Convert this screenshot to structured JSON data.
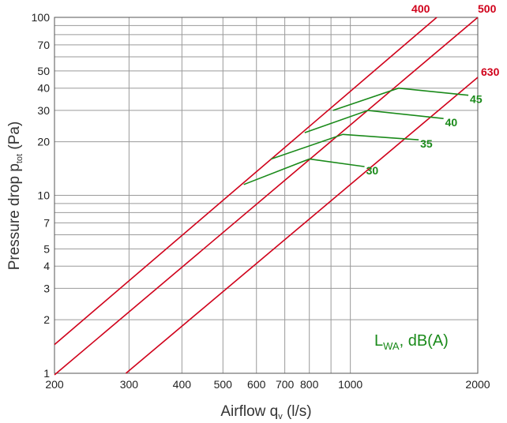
{
  "chart_data": {
    "type": "line",
    "xlabel": "Airflow q",
    "xlabel_sub": "v",
    "xlabel_unit": " (l/s)",
    "ylabel": "Pressure drop p",
    "ylabel_sub": "tot",
    "ylabel_unit": " (Pa)",
    "xscale": "log",
    "yscale": "log",
    "xlim": [
      200,
      2000
    ],
    "ylim": [
      1,
      100
    ],
    "x_ticks": [
      200,
      300,
      400,
      500,
      600,
      700,
      800,
      1000,
      2000
    ],
    "y_ticks": [
      1,
      2,
      3,
      4,
      5,
      7,
      10,
      20,
      30,
      40,
      50,
      70,
      100
    ],
    "grid": true,
    "series": [
      {
        "name": "400",
        "color": "#d0021b",
        "x": [
          200,
          1600
        ],
        "y": [
          1.45,
          100
        ]
      },
      {
        "name": "500",
        "color": "#d0021b",
        "x": [
          200,
          2000
        ],
        "y": [
          0.98,
          100
        ]
      },
      {
        "name": "630",
        "color": "#d0021b",
        "x": [
          295,
          2000
        ],
        "y": [
          1.0,
          46
        ]
      }
    ],
    "sound_curves": [
      {
        "name": "30",
        "color": "#1a8a1a",
        "x": [
          800,
          1080
        ],
        "y": [
          16,
          14.5
        ]
      },
      {
        "name": "35",
        "color": "#1a8a1a",
        "x": [
          650,
          960,
          1450
        ],
        "y": [
          16,
          22,
          20.5
        ]
      },
      {
        "name": "40",
        "color": "#1a8a1a",
        "x": [
          780,
          1100,
          1660
        ],
        "y": [
          22.5,
          30,
          27
        ]
      },
      {
        "name": "45",
        "color": "#1a8a1a",
        "x": [
          910,
          1300,
          1900
        ],
        "y": [
          30,
          40,
          36.5
        ]
      },
      {
        "name": "",
        "color": "#1a8a1a",
        "x": [
          560,
          800
        ],
        "y": [
          11.5,
          16
        ]
      }
    ],
    "annotation": {
      "main": "L",
      "sub": "WA",
      "rest": ", dB(A)"
    }
  }
}
